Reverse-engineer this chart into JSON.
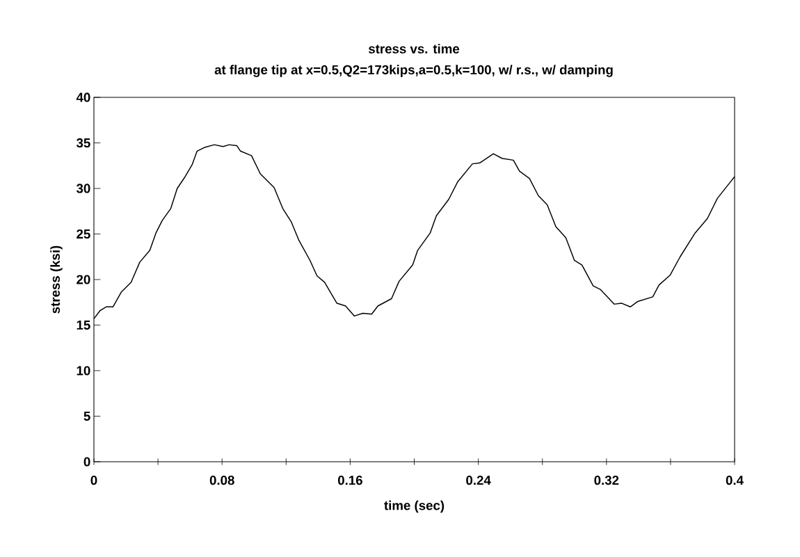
{
  "chart_data": {
    "type": "line",
    "title": "stress vs. time",
    "subtitle": "at flange tip at x=0.5,Q2=173kips,a=0.5,k=100, w/ r.s., w/ damping",
    "xlabel": "time (sec)",
    "ylabel": "stress (ksi)",
    "xlim": [
      0,
      0.4
    ],
    "ylim": [
      0,
      40
    ],
    "xticks": [
      0,
      {
        "value": 0.04,
        "label": null
      },
      0.08,
      {
        "value": 0.12,
        "label": null
      },
      0.16,
      {
        "value": 0.2,
        "label": null
      },
      0.24,
      {
        "value": 0.28,
        "label": null
      },
      0.32,
      {
        "value": 0.36,
        "label": null
      },
      0.4
    ],
    "yticks": [
      0,
      5,
      10,
      15,
      20,
      25,
      30,
      35,
      40
    ],
    "marker": "none",
    "line_style": "solid",
    "series": [
      {
        "color": "#000000",
        "x": [
          0,
          0.0039,
          0.0076,
          0.0119,
          0.017,
          0.0232,
          0.0286,
          0.0349,
          0.0387,
          0.0427,
          0.048,
          0.052,
          0.0566,
          0.0613,
          0.0644,
          0.069,
          0.0752,
          0.0806,
          0.0845,
          0.0892,
          0.0915,
          0.0984,
          0.1039,
          0.1125,
          0.1179,
          0.1233,
          0.128,
          0.1349,
          0.1393,
          0.144,
          0.1517,
          0.1571,
          0.1626,
          0.1679,
          0.1734,
          0.1773,
          0.1858,
          0.1905,
          0.199,
          0.2021,
          0.2099,
          0.2138,
          0.2215,
          0.227,
          0.2363,
          0.2409,
          0.2494,
          0.2548,
          0.2619,
          0.2657,
          0.2719,
          0.2775,
          0.283,
          0.2884,
          0.2946,
          0.3,
          0.3047,
          0.3117,
          0.3163,
          0.3248,
          0.3295,
          0.3349,
          0.3396,
          0.3489,
          0.3528,
          0.3598,
          0.366,
          0.3753,
          0.383,
          0.3892,
          0.3973,
          0.4
        ],
        "values": [
          15.7,
          16.6,
          17.0,
          17.0,
          18.6,
          19.7,
          21.9,
          23.2,
          25.1,
          26.5,
          27.8,
          30.0,
          31.2,
          32.6,
          34.1,
          34.5,
          34.8,
          34.6,
          34.8,
          34.7,
          34.1,
          33.6,
          31.6,
          30.1,
          27.8,
          26.3,
          24.3,
          22.1,
          20.4,
          19.7,
          17.4,
          17.1,
          16.0,
          16.3,
          16.2,
          17.1,
          17.9,
          19.8,
          21.6,
          23.2,
          25.1,
          27.0,
          28.8,
          30.7,
          32.7,
          32.8,
          33.8,
          33.3,
          33.1,
          31.9,
          31.1,
          29.2,
          28.2,
          25.8,
          24.6,
          22.1,
          21.6,
          19.3,
          18.9,
          17.3,
          17.4,
          17.0,
          17.6,
          18.1,
          19.4,
          20.5,
          22.5,
          25.1,
          26.7,
          28.9,
          30.7,
          31.3
        ]
      }
    ]
  }
}
